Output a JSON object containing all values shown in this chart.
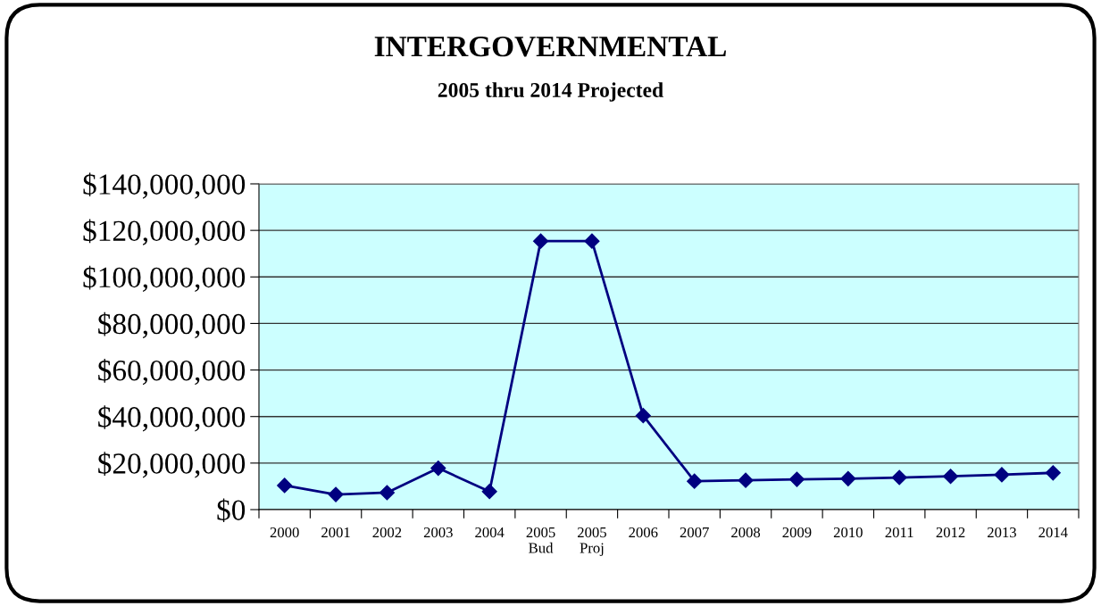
{
  "chart_data": {
    "type": "line",
    "title": "INTERGOVERNMENTAL",
    "subtitle": "2005 thru 2014 Projected",
    "categories": [
      "2000",
      "2001",
      "2002",
      "2003",
      "2004",
      "2005\nBud",
      "2005\nProj",
      "2006",
      "2007",
      "2008",
      "2009",
      "2010",
      "2011",
      "2012",
      "2013",
      "2014"
    ],
    "series": [
      {
        "color": "#000080",
        "values": [
          10400000,
          6500000,
          7300000,
          17800000,
          7800000,
          115400000,
          115400000,
          40400000,
          12200000,
          12600000,
          13000000,
          13300000,
          13800000,
          14300000,
          15000000,
          15800000
        ]
      }
    ],
    "ylim": [
      0,
      140000000
    ],
    "yticks": [
      {
        "value": 0,
        "label": "$0"
      },
      {
        "value": 20000000,
        "label": "$20,000,000"
      },
      {
        "value": 40000000,
        "label": "$40,000,000"
      },
      {
        "value": 60000000,
        "label": "$60,000,000"
      },
      {
        "value": 80000000,
        "label": "$80,000,000"
      },
      {
        "value": 100000000,
        "label": "$100,000,000"
      },
      {
        "value": 120000000,
        "label": "$120,000,000"
      },
      {
        "value": 140000000,
        "label": "$140,000,000"
      }
    ],
    "grid": "y",
    "marker": "diamond",
    "line_style": "solid",
    "legend": false
  }
}
